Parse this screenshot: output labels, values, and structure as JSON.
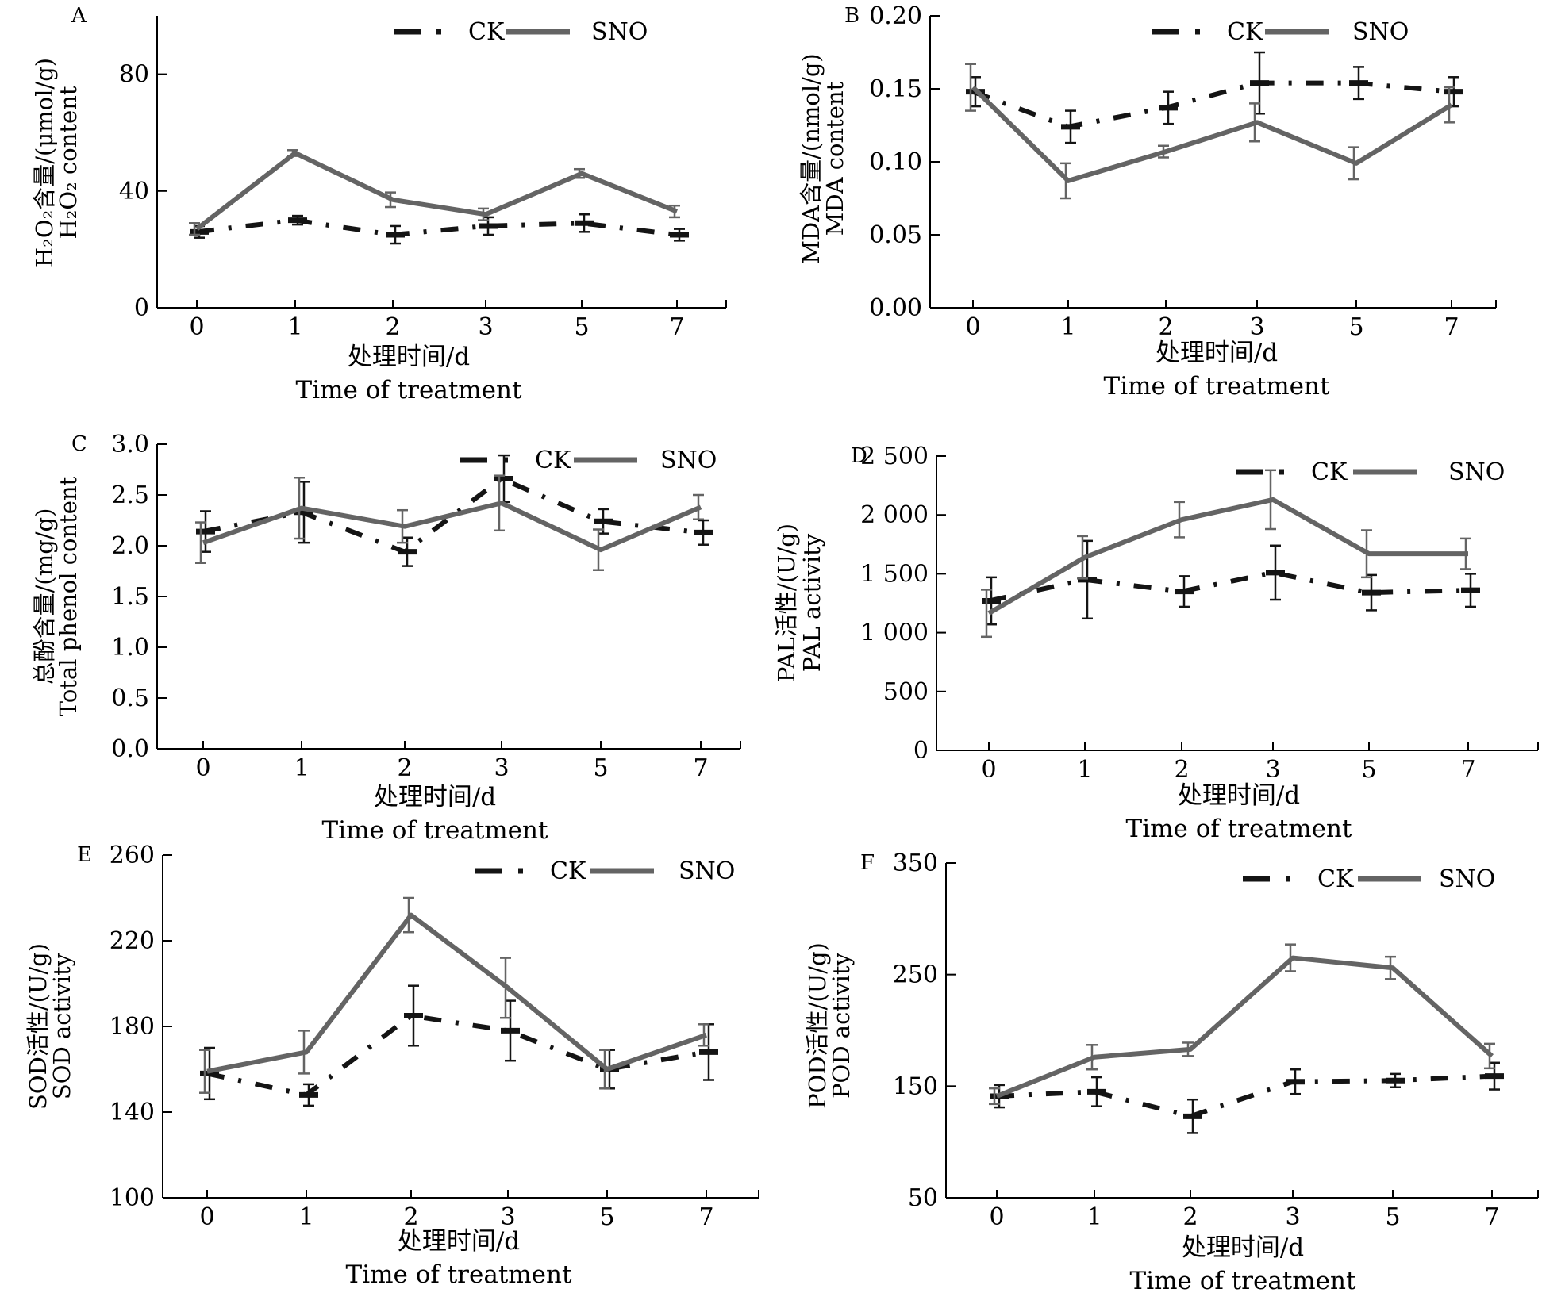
{
  "chart_data": [
    {
      "panel": "A",
      "type": "line",
      "categories": [
        "0",
        "1",
        "2",
        "3",
        "5",
        "7"
      ],
      "xlabel": "处理时间/d",
      "xlabel_en": "Time of treatment",
      "ylabel": "H₂O₂含量/(μmol/g)",
      "ylabel_en": "H₂O₂ content",
      "ylim": [
        0,
        100
      ],
      "yticks": [
        0,
        40,
        80
      ],
      "yticks_labels": [
        "0",
        "40",
        "80"
      ],
      "legend_position": "top-center",
      "grid": false,
      "series": [
        {
          "name": "CK",
          "values": [
            26,
            30,
            25,
            28,
            29,
            25
          ],
          "errors": [
            2,
            1.5,
            3,
            3,
            3,
            2
          ]
        },
        {
          "name": "SNO",
          "values": [
            27,
            53,
            37,
            32,
            46,
            33
          ],
          "errors": [
            2,
            1,
            2.5,
            2,
            1.5,
            2
          ]
        }
      ]
    },
    {
      "panel": "B",
      "type": "line",
      "categories": [
        "0",
        "1",
        "2",
        "3",
        "5",
        "7"
      ],
      "xlabel": "处理时间/d",
      "xlabel_en": "Time of treatment",
      "ylabel": "MDA含量/(nmol/g)",
      "ylabel_en": "MDA content",
      "ylim": [
        0,
        0.2
      ],
      "yticks": [
        0,
        0.05,
        0.1,
        0.15,
        0.2
      ],
      "yticks_labels": [
        "0.00",
        "0.05",
        "0.10",
        "0.15",
        "0.20"
      ],
      "legend_position": "top-right",
      "grid": false,
      "series": [
        {
          "name": "CK",
          "values": [
            0.148,
            0.124,
            0.137,
            0.154,
            0.154,
            0.148
          ],
          "errors": [
            0.01,
            0.011,
            0.011,
            0.021,
            0.011,
            0.01
          ]
        },
        {
          "name": "SNO",
          "values": [
            0.151,
            0.087,
            0.107,
            0.127,
            0.099,
            0.139
          ],
          "errors": [
            0.016,
            0.012,
            0.004,
            0.013,
            0.011,
            0.012
          ]
        }
      ]
    },
    {
      "panel": "C",
      "type": "line",
      "categories": [
        "0",
        "1",
        "2",
        "3",
        "5",
        "7"
      ],
      "xlabel": "处理时间/d",
      "xlabel_en": "Time of treatment",
      "ylabel": "总酚含量/(mg/g)",
      "ylabel_en": "Total phenol content",
      "ylim": [
        0,
        3
      ],
      "yticks": [
        0,
        0.5,
        1,
        1.5,
        2,
        2.5,
        3
      ],
      "yticks_labels": [
        "0.0",
        "0.5",
        "1.0",
        "1.5",
        "2.0",
        "2.5",
        "3.0"
      ],
      "legend_position": "top-right",
      "grid": false,
      "series": [
        {
          "name": "CK",
          "values": [
            2.14,
            2.33,
            1.94,
            2.66,
            2.24,
            2.13
          ],
          "errors": [
            0.2,
            0.3,
            0.14,
            0.23,
            0.12,
            0.12
          ]
        },
        {
          "name": "SNO",
          "values": [
            2.03,
            2.37,
            2.19,
            2.42,
            1.96,
            2.38
          ],
          "errors": [
            0.2,
            0.3,
            0.16,
            0.27,
            0.2,
            0.12
          ]
        }
      ]
    },
    {
      "panel": "D",
      "type": "line",
      "categories": [
        "0",
        "1",
        "2",
        "3",
        "5",
        "7"
      ],
      "xlabel": "处理时间/d",
      "xlabel_en": "Time of treatment",
      "ylabel": "PAL活性/(U/g)",
      "ylabel_en": "PAL activity",
      "ylim": [
        0,
        2500
      ],
      "yticks": [
        0,
        500,
        1000,
        1500,
        2000,
        2500
      ],
      "yticks_labels": [
        "0",
        "500",
        "1 000",
        "1 500",
        "2 000",
        "2 500"
      ],
      "legend_position": "top-right",
      "grid": false,
      "series": [
        {
          "name": "CK",
          "values": [
            1270,
            1450,
            1350,
            1510,
            1340,
            1360
          ],
          "errors": [
            200,
            330,
            130,
            230,
            150,
            140
          ]
        },
        {
          "name": "SNO",
          "values": [
            1165,
            1640,
            1960,
            2130,
            1670,
            1670
          ],
          "errors": [
            200,
            180,
            150,
            250,
            200,
            130
          ]
        }
      ]
    },
    {
      "panel": "E",
      "type": "line",
      "categories": [
        "0",
        "1",
        "2",
        "3",
        "5",
        "7"
      ],
      "xlabel": "处理时间/d",
      "xlabel_en": "Time of treatment",
      "ylabel": "SOD活性/(U/g)",
      "ylabel_en": "SOD activity",
      "ylim": [
        100,
        260
      ],
      "yticks": [
        100,
        140,
        180,
        220,
        260
      ],
      "yticks_labels": [
        "100",
        "140",
        "180",
        "220",
        "260"
      ],
      "legend_position": "top-right",
      "grid": false,
      "series": [
        {
          "name": "CK",
          "values": [
            158,
            148,
            185,
            178,
            160,
            168
          ],
          "errors": [
            12,
            5,
            14,
            14,
            9,
            13
          ]
        },
        {
          "name": "SNO",
          "values": [
            159,
            168,
            232,
            198,
            160,
            176
          ],
          "errors": [
            10,
            10,
            8,
            14,
            9,
            5
          ]
        }
      ]
    },
    {
      "panel": "F",
      "type": "line",
      "categories": [
        "0",
        "1",
        "2",
        "3",
        "5",
        "7"
      ],
      "xlabel": "处理时间/d",
      "xlabel_en": "Time of treatment",
      "ylabel": "POD活性/(U/g)",
      "ylabel_en": "POD activity",
      "ylim": [
        50,
        350
      ],
      "yticks": [
        50,
        150,
        250,
        350
      ],
      "yticks_labels": [
        "50",
        "150",
        "250",
        "350"
      ],
      "legend_position": "top-right",
      "grid": false,
      "series": [
        {
          "name": "CK",
          "values": [
            141,
            145,
            123,
            154,
            155,
            159
          ],
          "errors": [
            10,
            13,
            15,
            11,
            6,
            12
          ]
        },
        {
          "name": "SNO",
          "values": [
            141,
            176,
            183,
            265,
            256,
            177
          ],
          "errors": [
            7,
            11,
            6,
            12,
            10,
            11
          ]
        }
      ]
    }
  ],
  "colors": {
    "ck": "#141414",
    "sno": "#646464",
    "axis": "#000000"
  }
}
